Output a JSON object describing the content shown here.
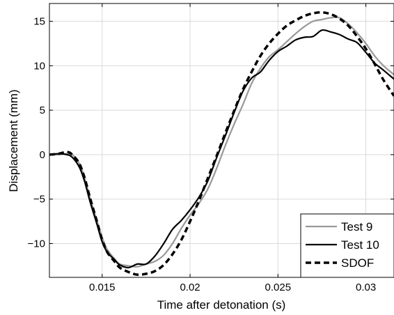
{
  "chart_data": {
    "type": "line",
    "title": "",
    "xlabel": "Time after detonation (s)",
    "ylabel": "Displacement (mm)",
    "xlim": [
      0.012,
      0.0316
    ],
    "ylim": [
      -13.8,
      17
    ],
    "xticks": [
      0.015,
      0.02,
      0.025,
      0.03
    ],
    "xtick_labels": [
      "0.015",
      "0.02",
      "0.025",
      "0.03"
    ],
    "yticks": [
      -10,
      -5,
      0,
      5,
      10,
      15
    ],
    "ytick_labels": [
      "−10",
      "−5",
      "0",
      "5",
      "10",
      "15"
    ],
    "grid": true,
    "legend_position": "bottom-right",
    "series": [
      {
        "name": "Test 9",
        "color": "#999999",
        "dash": "solid",
        "points": [
          [
            0.012,
            0.0
          ],
          [
            0.0125,
            0.0
          ],
          [
            0.013,
            0.1
          ],
          [
            0.0133,
            0.0
          ],
          [
            0.0137,
            -1.0
          ],
          [
            0.014,
            -2.6
          ],
          [
            0.0143,
            -4.8
          ],
          [
            0.0147,
            -7.4
          ],
          [
            0.015,
            -9.3
          ],
          [
            0.0153,
            -10.7
          ],
          [
            0.0157,
            -11.7
          ],
          [
            0.016,
            -12.3
          ],
          [
            0.0165,
            -12.5
          ],
          [
            0.017,
            -12.6
          ],
          [
            0.0175,
            -12.3
          ],
          [
            0.018,
            -12.0
          ],
          [
            0.0185,
            -11.3
          ],
          [
            0.019,
            -10.0
          ],
          [
            0.0195,
            -8.3
          ],
          [
            0.02,
            -6.8
          ],
          [
            0.0205,
            -5.5
          ],
          [
            0.021,
            -3.9
          ],
          [
            0.0215,
            -1.6
          ],
          [
            0.022,
            1.0
          ],
          [
            0.0225,
            3.4
          ],
          [
            0.023,
            5.6
          ],
          [
            0.0235,
            8.0
          ],
          [
            0.024,
            9.7
          ],
          [
            0.0245,
            11.0
          ],
          [
            0.025,
            11.8
          ],
          [
            0.0255,
            12.7
          ],
          [
            0.026,
            13.6
          ],
          [
            0.0265,
            14.4
          ],
          [
            0.027,
            15.0
          ],
          [
            0.0275,
            15.2
          ],
          [
            0.028,
            15.4
          ],
          [
            0.0285,
            15.4
          ],
          [
            0.029,
            14.7
          ],
          [
            0.0295,
            13.7
          ],
          [
            0.03,
            12.5
          ],
          [
            0.0305,
            11.1
          ],
          [
            0.031,
            10.0
          ],
          [
            0.0316,
            9.0
          ]
        ]
      },
      {
        "name": "Test 10",
        "color": "#000000",
        "dash": "solid",
        "points": [
          [
            0.012,
            0.0
          ],
          [
            0.0125,
            0.1
          ],
          [
            0.013,
            0.0
          ],
          [
            0.0133,
            -0.3
          ],
          [
            0.0137,
            -1.4
          ],
          [
            0.014,
            -3.0
          ],
          [
            0.0143,
            -5.2
          ],
          [
            0.0147,
            -7.8
          ],
          [
            0.015,
            -9.8
          ],
          [
            0.0153,
            -11.0
          ],
          [
            0.0157,
            -11.8
          ],
          [
            0.016,
            -12.4
          ],
          [
            0.0165,
            -12.7
          ],
          [
            0.017,
            -12.3
          ],
          [
            0.0175,
            -12.3
          ],
          [
            0.018,
            -11.4
          ],
          [
            0.0185,
            -10.0
          ],
          [
            0.019,
            -8.4
          ],
          [
            0.0195,
            -7.4
          ],
          [
            0.02,
            -6.2
          ],
          [
            0.0205,
            -4.8
          ],
          [
            0.021,
            -3.0
          ],
          [
            0.0215,
            -0.4
          ],
          [
            0.022,
            2.1
          ],
          [
            0.0225,
            4.7
          ],
          [
            0.023,
            7.1
          ],
          [
            0.0235,
            8.6
          ],
          [
            0.024,
            9.3
          ],
          [
            0.0245,
            10.6
          ],
          [
            0.025,
            11.6
          ],
          [
            0.0255,
            12.2
          ],
          [
            0.026,
            12.9
          ],
          [
            0.0265,
            13.2
          ],
          [
            0.027,
            13.3
          ],
          [
            0.0275,
            14.0
          ],
          [
            0.028,
            13.8
          ],
          [
            0.0285,
            13.5
          ],
          [
            0.029,
            13.0
          ],
          [
            0.0295,
            12.6
          ],
          [
            0.03,
            11.5
          ],
          [
            0.0305,
            10.3
          ],
          [
            0.031,
            9.5
          ],
          [
            0.0316,
            8.5
          ]
        ]
      },
      {
        "name": "SDOF",
        "color": "#000000",
        "dash": "dashed",
        "points": [
          [
            0.012,
            0.0
          ],
          [
            0.0125,
            0.1
          ],
          [
            0.013,
            0.3
          ],
          [
            0.0133,
            0.0
          ],
          [
            0.0137,
            -1.0
          ],
          [
            0.014,
            -2.6
          ],
          [
            0.0143,
            -4.8
          ],
          [
            0.0147,
            -7.5
          ],
          [
            0.015,
            -9.6
          ],
          [
            0.0153,
            -11.0
          ],
          [
            0.0157,
            -12.0
          ],
          [
            0.016,
            -12.7
          ],
          [
            0.0165,
            -13.2
          ],
          [
            0.017,
            -13.5
          ],
          [
            0.0175,
            -13.4
          ],
          [
            0.018,
            -13.1
          ],
          [
            0.0185,
            -12.4
          ],
          [
            0.019,
            -11.2
          ],
          [
            0.0195,
            -9.6
          ],
          [
            0.02,
            -7.5
          ],
          [
            0.0205,
            -5.2
          ],
          [
            0.021,
            -2.7
          ],
          [
            0.0215,
            -0.2
          ],
          [
            0.022,
            2.4
          ],
          [
            0.0225,
            4.9
          ],
          [
            0.023,
            7.3
          ],
          [
            0.0235,
            9.3
          ],
          [
            0.024,
            11.1
          ],
          [
            0.0245,
            12.5
          ],
          [
            0.025,
            13.6
          ],
          [
            0.0255,
            14.5
          ],
          [
            0.026,
            15.1
          ],
          [
            0.0265,
            15.6
          ],
          [
            0.027,
            15.9
          ],
          [
            0.0275,
            16.0
          ],
          [
            0.028,
            15.8
          ],
          [
            0.0285,
            15.3
          ],
          [
            0.029,
            14.5
          ],
          [
            0.0295,
            13.3
          ],
          [
            0.03,
            11.9
          ],
          [
            0.0305,
            10.2
          ],
          [
            0.031,
            8.4
          ],
          [
            0.0316,
            6.6
          ]
        ]
      }
    ]
  }
}
